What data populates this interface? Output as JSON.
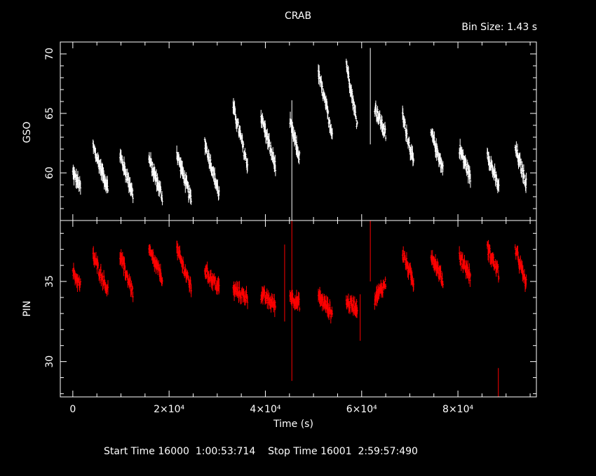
{
  "title": "CRAB",
  "bin_size": "Bin Size: 1.43 s",
  "footer": {
    "start_label": "Start Time",
    "start_day": "16000",
    "start_time": "1:00:53:714",
    "stop_label": "Stop Time",
    "stop_day": "16001",
    "stop_time": "2:59:57:490"
  },
  "colors": {
    "background": "#000000",
    "axes": "#ffffff",
    "gso": "#ffffff",
    "pin": "#ff0000"
  },
  "chart_data": [
    {
      "type": "scatter",
      "panel": "top",
      "ylabel": "GSO",
      "xlabel": "Time (s)",
      "xlim": [
        -2600,
        96300
      ],
      "ylim": [
        56.0,
        71.0
      ],
      "yticks": [
        60,
        65,
        70
      ],
      "xticks": [
        "0",
        "2×10⁴",
        "4×10⁴",
        "6×10⁴",
        "8×10⁴"
      ],
      "xtick_values": [
        0,
        20000,
        40000,
        60000,
        80000
      ],
      "error_bars": true,
      "series": [
        {
          "color": "#ffffff",
          "segments": [
            {
              "x0": 0,
              "x1": 1600,
              "y0": 60.0,
              "y1": 58.8
            },
            {
              "x0": 4200,
              "x1": 7300,
              "y0": 62.2,
              "y1": 58.7
            },
            {
              "x0": 9800,
              "x1": 12500,
              "y0": 61.5,
              "y1": 58.2
            },
            {
              "x0": 15800,
              "x1": 18600,
              "y0": 61.2,
              "y1": 58.0
            },
            {
              "x0": 21600,
              "x1": 24600,
              "y0": 61.6,
              "y1": 57.7
            },
            {
              "x0": 27400,
              "x1": 30400,
              "y0": 62.6,
              "y1": 58.2
            },
            {
              "x0": 33300,
              "x1": 36300,
              "y0": 65.6,
              "y1": 60.6
            },
            {
              "x0": 39100,
              "x1": 42100,
              "y0": 64.8,
              "y1": 60.5
            },
            {
              "x0": 45100,
              "x1": 47100,
              "y0": 64.2,
              "y1": 61.3
            },
            {
              "x0": 51000,
              "x1": 53900,
              "y0": 68.4,
              "y1": 63.3
            },
            {
              "x0": 56800,
              "x1": 59100,
              "y0": 69.3,
              "y1": 64.0
            },
            {
              "x0": 62700,
              "x1": 65000,
              "y0": 65.6,
              "y1": 63.2
            },
            {
              "x0": 68500,
              "x1": 70800,
              "y0": 64.8,
              "y1": 60.8
            },
            {
              "x0": 74400,
              "x1": 76900,
              "y0": 63.4,
              "y1": 60.3
            },
            {
              "x0": 80300,
              "x1": 82600,
              "y0": 62.1,
              "y1": 59.6
            },
            {
              "x0": 86100,
              "x1": 88500,
              "y0": 61.7,
              "y1": 58.7
            },
            {
              "x0": 91900,
              "x1": 94200,
              "y0": 62.1,
              "y1": 59.1
            }
          ],
          "spikes": [
            {
              "x": 45500,
              "y0": 56.0,
              "y1": 66.1
            },
            {
              "x": 61800,
              "y0": 62.4,
              "y1": 70.5
            }
          ]
        }
      ]
    },
    {
      "type": "scatter",
      "panel": "bottom",
      "ylabel": "PIN",
      "xlabel": "Time (s)",
      "xlim": [
        -2600,
        96300
      ],
      "ylim": [
        27.8,
        38.8
      ],
      "yticks": [
        30,
        35
      ],
      "xticks": [
        "0",
        "2×10⁴",
        "4×10⁴",
        "6×10⁴",
        "8×10⁴"
      ],
      "xtick_values": [
        0,
        20000,
        40000,
        60000,
        80000
      ],
      "error_bars": true,
      "series": [
        {
          "color": "#ff0000",
          "segments": [
            {
              "x0": 0,
              "x1": 1600,
              "y0": 35.6,
              "y1": 34.7
            },
            {
              "x0": 4200,
              "x1": 7300,
              "y0": 36.6,
              "y1": 34.4
            },
            {
              "x0": 9800,
              "x1": 12500,
              "y0": 36.6,
              "y1": 34.3
            },
            {
              "x0": 15800,
              "x1": 18600,
              "y0": 36.9,
              "y1": 35.2
            },
            {
              "x0": 21600,
              "x1": 24600,
              "y0": 37.0,
              "y1": 34.6
            },
            {
              "x0": 27400,
              "x1": 30400,
              "y0": 35.7,
              "y1": 34.6
            },
            {
              "x0": 33300,
              "x1": 36300,
              "y0": 34.5,
              "y1": 34.0
            },
            {
              "x0": 39100,
              "x1": 42100,
              "y0": 34.2,
              "y1": 33.5
            },
            {
              "x0": 45100,
              "x1": 47100,
              "y0": 34.1,
              "y1": 33.6
            },
            {
              "x0": 51000,
              "x1": 53900,
              "y0": 34.1,
              "y1": 33.0
            },
            {
              "x0": 56800,
              "x1": 59100,
              "y0": 33.7,
              "y1": 33.4
            },
            {
              "x0": 62700,
              "x1": 65000,
              "y0": 33.9,
              "y1": 34.9
            },
            {
              "x0": 68500,
              "x1": 70800,
              "y0": 36.8,
              "y1": 34.9
            },
            {
              "x0": 74400,
              "x1": 76900,
              "y0": 36.7,
              "y1": 35.0
            },
            {
              "x0": 80300,
              "x1": 82600,
              "y0": 36.6,
              "y1": 35.3
            },
            {
              "x0": 86100,
              "x1": 88500,
              "y0": 37.1,
              "y1": 35.5
            },
            {
              "x0": 91900,
              "x1": 94200,
              "y0": 37.0,
              "y1": 34.8
            }
          ],
          "spikes": [
            {
              "x": 45500,
              "y0": 28.8,
              "y1": 38.8
            },
            {
              "x": 61800,
              "y0": 35.0,
              "y1": 38.8
            },
            {
              "x": 44000,
              "y0": 32.5,
              "y1": 37.3
            },
            {
              "x": 59700,
              "y0": 31.3,
              "y1": 34.2
            },
            {
              "x": 88400,
              "y0": 27.8,
              "y1": 29.6
            }
          ]
        }
      ]
    }
  ]
}
